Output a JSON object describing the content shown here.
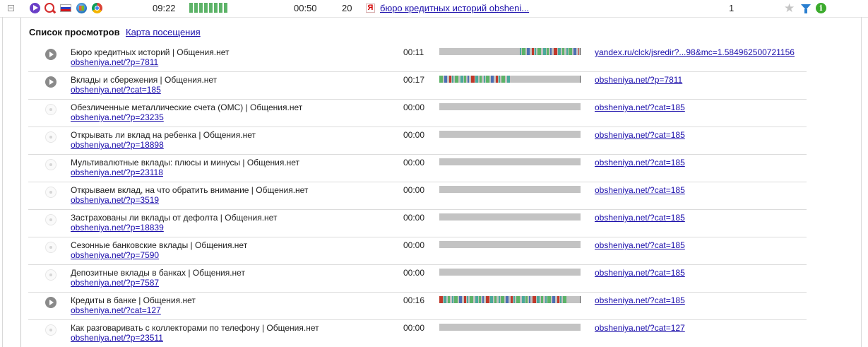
{
  "session": {
    "expander": "−",
    "time": "09:22",
    "activity_bars": 8,
    "duration": "00:50",
    "page_count": "20",
    "search_engine_icon": "yandex-icon",
    "search_engine_glyph": "Я",
    "landing_link": "бюро кредитных историй obsheni...",
    "visit_number": "1",
    "icons": [
      "play-icon",
      "search-icon",
      "russia-flag-icon",
      "windows-icon",
      "chrome-icon",
      "star-icon",
      "filter-icon",
      "info-icon"
    ],
    "star_glyph": "★",
    "info_glyph": "i"
  },
  "tabs": {
    "active": "Список просмотров",
    "link": "Карта посещения"
  },
  "colors": {
    "teal": "#4aa99a",
    "green": "#5db368",
    "blue": "#4c6fb3",
    "red": "#c0392b",
    "gray_bar": "#c3c3c3"
  },
  "rows": [
    {
      "title": "Бюро кредитных историй | Общения.нет",
      "url": "obsheniya.net/?p=7811",
      "duration": "00:11",
      "played": true,
      "activity_start": 0.57,
      "activity_end": 0.99,
      "referrer": "yandex.ru/clck/jsredir?...98&mc=1.584962500721156"
    },
    {
      "title": "Вклады и сбережения | Общения.нет",
      "url": "obsheniya.net/?cat=185",
      "duration": "00:17",
      "played": true,
      "activity_start": 0.0,
      "activity_end": 0.5,
      "referrer": "obsheniya.net/?p=7811"
    },
    {
      "title": "Обезличенные металлические счета (ОМС) | Общения.нет",
      "url": "obsheniya.net/?p=23235",
      "duration": "00:00",
      "played": false,
      "activity_start": 0,
      "activity_end": 0,
      "referrer": "obsheniya.net/?cat=185"
    },
    {
      "title": "Открывать ли вклад на ребенка | Общения.нет",
      "url": "obsheniya.net/?p=18898",
      "duration": "00:00",
      "played": false,
      "activity_start": 0,
      "activity_end": 0,
      "referrer": "obsheniya.net/?cat=185"
    },
    {
      "title": "Мультивалютные вклады: плюсы и минусы | Общения.нет",
      "url": "obsheniya.net/?p=23118",
      "duration": "00:00",
      "played": false,
      "activity_start": 0,
      "activity_end": 0,
      "referrer": "obsheniya.net/?cat=185"
    },
    {
      "title": "Открываем вклад, на что обратить внимание | Общения.нет",
      "url": "obsheniya.net/?p=3519",
      "duration": "00:00",
      "played": false,
      "activity_start": 0,
      "activity_end": 0,
      "referrer": "obsheniya.net/?cat=185"
    },
    {
      "title": "Застрахованы ли вклады от дефолта | Общения.нет",
      "url": "obsheniya.net/?p=18839",
      "duration": "00:00",
      "played": false,
      "activity_start": 0,
      "activity_end": 0,
      "referrer": "obsheniya.net/?cat=185"
    },
    {
      "title": "Сезонные банковские вклады | Общения.нет",
      "url": "obsheniya.net/?p=7590",
      "duration": "00:00",
      "played": false,
      "activity_start": 0,
      "activity_end": 0,
      "referrer": "obsheniya.net/?cat=185"
    },
    {
      "title": "Депозитные вклады в банках | Общения.нет",
      "url": "obsheniya.net/?p=7587",
      "duration": "00:00",
      "played": false,
      "activity_start": 0,
      "activity_end": 0,
      "referrer": "obsheniya.net/?cat=185"
    },
    {
      "title": "Кредиты в банке | Общения.нет",
      "url": "obsheniya.net/?cat=127",
      "duration": "00:16",
      "played": true,
      "activity_start": 0.0,
      "activity_end": 0.9,
      "referrer": "obsheniya.net/?cat=185"
    },
    {
      "title": "Как разговаривать с коллекторами по телефону | Общения.нет",
      "url": "obsheniya.net/?p=23511",
      "duration": "00:00",
      "played": false,
      "activity_start": 0,
      "activity_end": 0,
      "referrer": "obsheniya.net/?cat=127"
    }
  ]
}
